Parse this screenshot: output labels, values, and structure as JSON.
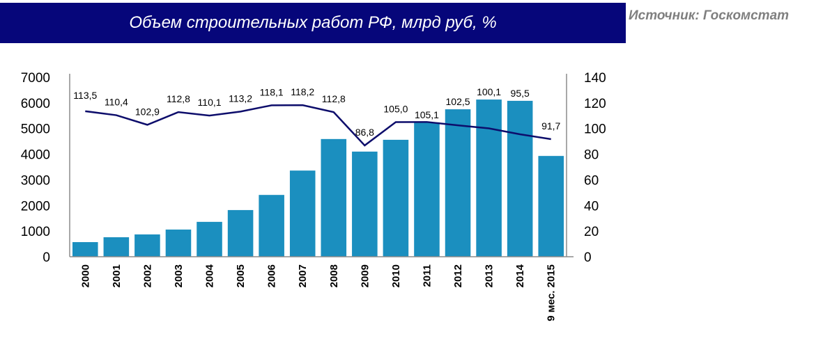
{
  "chart_data": {
    "type": "bar+line",
    "title": "Объем строительных работ РФ, млрд руб, %",
    "source": "Источник: Госкомстат",
    "categories": [
      "2000",
      "2001",
      "2002",
      "2003",
      "2004",
      "2005",
      "2006",
      "2007",
      "2008",
      "2009",
      "2010",
      "2011",
      "2012",
      "2013",
      "2014",
      "9 мес. 2015"
    ],
    "series": [
      {
        "type": "bar",
        "axis": "left",
        "color": "#1b8fbf",
        "values": [
          570,
          760,
          870,
          1060,
          1360,
          1820,
          2410,
          3360,
          4590,
          4100,
          4560,
          5240,
          5750,
          6130,
          6080,
          3930
        ]
      },
      {
        "type": "line",
        "axis": "right",
        "color": "#0d0d6b",
        "values": [
          113.5,
          110.4,
          102.9,
          112.8,
          110.1,
          113.2,
          118.1,
          118.2,
          112.8,
          86.8,
          105.0,
          105.1,
          102.5,
          100.1,
          95.5,
          91.7
        ],
        "labels": [
          "113,5",
          "110,4",
          "102,9",
          "112,8",
          "110,1",
          "113,2",
          "118,1",
          "118,2",
          "112,8",
          "86,8",
          "105,0",
          "105,1",
          "102,5",
          "100,1",
          "95,5",
          "91,7"
        ]
      }
    ],
    "yleft": {
      "lim": [
        0,
        7000
      ],
      "ticks": [
        "0",
        "1000",
        "2000",
        "3000",
        "4000",
        "5000",
        "6000",
        "7000"
      ]
    },
    "yright": {
      "lim": [
        0,
        140
      ],
      "ticks": [
        "0",
        "20",
        "40",
        "60",
        "80",
        "100",
        "120",
        "140"
      ]
    },
    "grid": false,
    "legend": "none"
  }
}
